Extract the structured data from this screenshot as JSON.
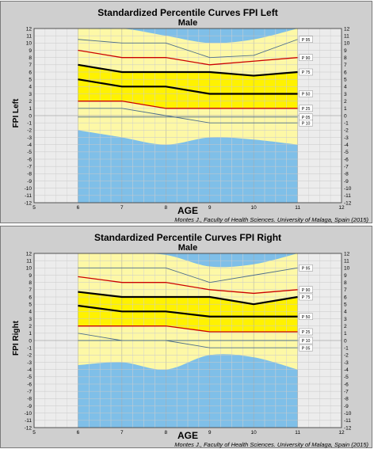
{
  "chart_data": [
    {
      "type": "line",
      "title": "Standardized Percentile Curves FPI Left",
      "subtitle": "Male",
      "xlabel": "AGE",
      "ylabel": "FPI  Left",
      "xlim": [
        5,
        12
      ],
      "ylim": [
        -12,
        12
      ],
      "x_ticks": [
        5,
        6,
        7,
        8,
        9,
        10,
        11,
        12
      ],
      "y_ticks": [
        -12,
        -11,
        -10,
        -9,
        -8,
        -7,
        -6,
        -5,
        -4,
        -3,
        -2,
        -1,
        0,
        1,
        2,
        3,
        4,
        5,
        6,
        7,
        8,
        9,
        10,
        11,
        12
      ],
      "grid": true,
      "x": [
        6,
        7,
        8,
        9,
        10,
        11
      ],
      "series": [
        {
          "name": "P 95",
          "values": [
            10.5,
            10,
            10,
            8,
            8.3,
            10.5
          ]
        },
        {
          "name": "P 90",
          "values": [
            9,
            8,
            8,
            7,
            7.5,
            8
          ]
        },
        {
          "name": "P 75",
          "values": [
            7,
            6,
            6,
            6,
            5.5,
            6
          ]
        },
        {
          "name": "P 50",
          "values": [
            5,
            4,
            4,
            3,
            3,
            3
          ]
        },
        {
          "name": "P 25",
          "values": [
            2,
            2,
            1,
            1,
            1,
            1
          ]
        },
        {
          "name": "P 10",
          "values": [
            1,
            1,
            0,
            -1,
            -1,
            -1
          ]
        },
        {
          "name": "P 05",
          "values": [
            -0.2,
            -0.2,
            -0.2,
            -0.2,
            -0.2,
            -0.2
          ]
        }
      ],
      "bands": {
        "upper_blue": [
          12.3,
          12.3,
          11,
          10,
          10.5,
          12.5
        ],
        "lower_blue": [
          -2,
          -3,
          -4,
          -3,
          -3.3,
          -4
        ]
      },
      "credit": "Montes J., Faculty of Health Sciences. University of Malaga, Spain (2015)",
      "colors": {
        "panel": "#cfcfcf",
        "plot_bg": "#ececec",
        "light_yellow": "#fdf8a6",
        "yellow": "#fff200",
        "blue": "#7fbfe8",
        "red": "#cc0000",
        "thin_line": "#4d6e8a",
        "thick_line": "#000000"
      }
    },
    {
      "type": "line",
      "title": "Standardized Percentile Curves FPI Right",
      "subtitle": "Male",
      "xlabel": "AGE",
      "ylabel": "FPI  Right",
      "xlim": [
        5,
        12
      ],
      "ylim": [
        -12,
        12
      ],
      "x_ticks": [
        5,
        6,
        7,
        8,
        9,
        10,
        11,
        12
      ],
      "y_ticks": [
        -12,
        -11,
        -10,
        -9,
        -8,
        -7,
        -6,
        -5,
        -4,
        -3,
        -2,
        -1,
        0,
        1,
        2,
        3,
        4,
        5,
        6,
        7,
        8,
        9,
        10,
        11,
        12
      ],
      "grid": true,
      "x": [
        6,
        7,
        8,
        9,
        10,
        11
      ],
      "series": [
        {
          "name": "P 95",
          "values": [
            10,
            10,
            10,
            8,
            9,
            10
          ]
        },
        {
          "name": "P 90",
          "values": [
            8.8,
            8,
            8,
            7,
            6.5,
            7
          ]
        },
        {
          "name": "P 75",
          "values": [
            6.7,
            6,
            6,
            6,
            5,
            6
          ]
        },
        {
          "name": "P 50",
          "values": [
            4.8,
            4,
            4,
            3.3,
            3.3,
            3.3
          ]
        },
        {
          "name": "P 25",
          "values": [
            2,
            2,
            2,
            1.2,
            1.2,
            1.2
          ]
        },
        {
          "name": "P 10",
          "values": [
            1,
            0,
            0,
            0,
            0,
            0
          ]
        },
        {
          "name": "P 05",
          "values": [
            0,
            0,
            0,
            -1,
            -1,
            -1
          ]
        }
      ],
      "bands": {
        "upper_blue": [
          12.3,
          12.3,
          11.8,
          10.2,
          10.5,
          12.5
        ],
        "lower_blue": [
          -3.4,
          -3,
          -4,
          -2,
          -2.3,
          -4
        ]
      },
      "credit": "Montes J., Faculty of Health Sciences. University of Malaga, Spain (2015)",
      "colors": {
        "panel": "#cfcfcf",
        "plot_bg": "#ececec",
        "light_yellow": "#fdf8a6",
        "yellow": "#fff200",
        "blue": "#7fbfe8",
        "red": "#cc0000",
        "thin_line": "#4d6e8a",
        "thick_line": "#000000"
      }
    }
  ]
}
